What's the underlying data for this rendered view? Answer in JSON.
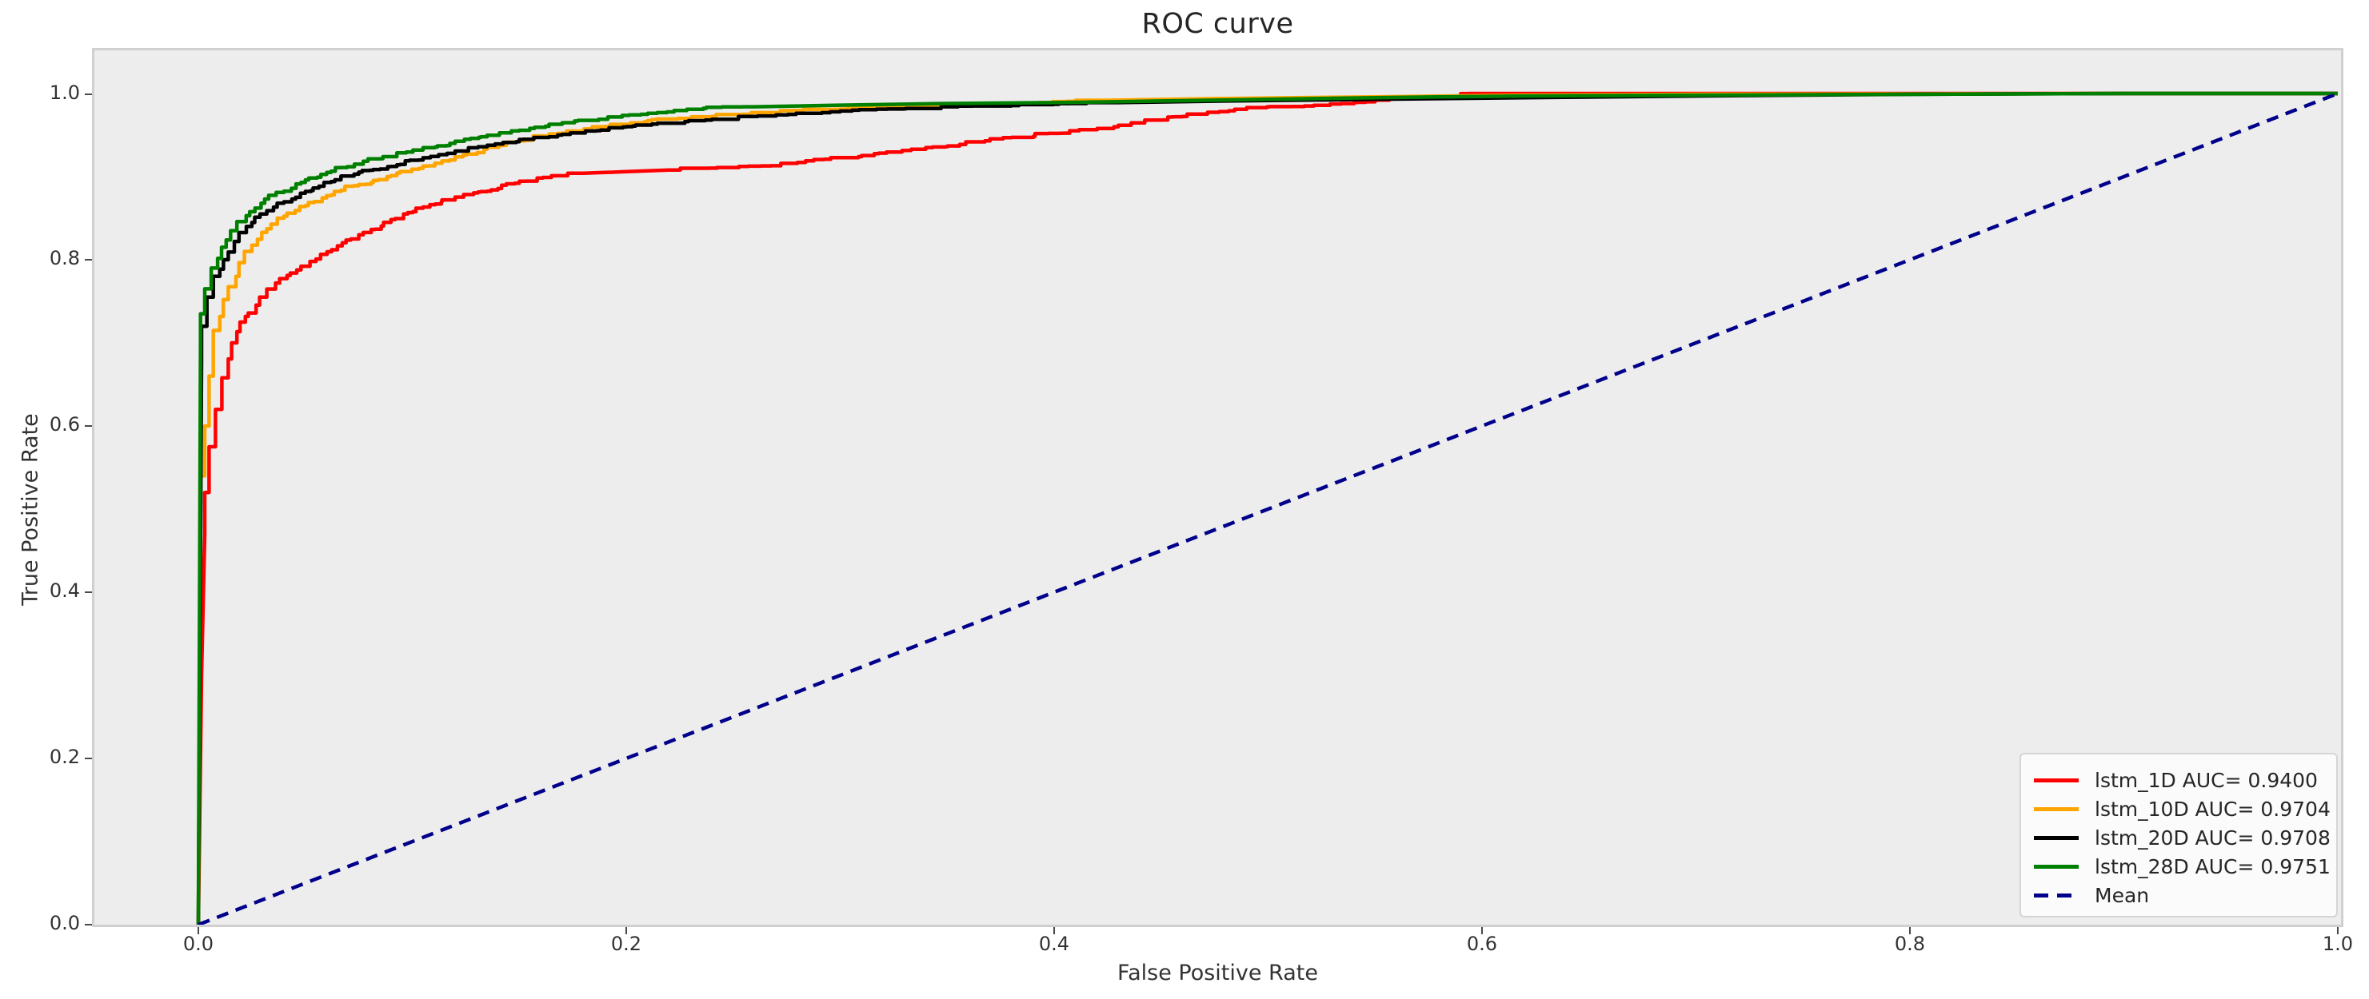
{
  "title": "ROC curve",
  "axes": {
    "xlabel": "False Positive Rate",
    "ylabel": "True Positive Rate",
    "x_ticks": [
      "0.0",
      "0.2",
      "0.4",
      "0.6",
      "0.8",
      "1.0"
    ],
    "y_ticks": [
      "0.0",
      "0.2",
      "0.4",
      "0.6",
      "0.8",
      "1.0"
    ]
  },
  "colors": {
    "plot_background": "#ededed",
    "figure_background": "#ffffff",
    "spine": "#d0d0d0",
    "tick_text": "#333333"
  },
  "legend": {
    "position": "lower right",
    "items": [
      "lstm_1D AUC= 0.9400",
      "lstm_10D AUC= 0.9704",
      "lstm_20D AUC= 0.9708",
      "lstm_28D AUC= 0.9751",
      "Mean"
    ]
  },
  "chart_data": {
    "type": "line",
    "title": "ROC curve",
    "xlabel": "False Positive Rate",
    "ylabel": "True Positive Rate",
    "xlim": [
      -0.049,
      1.002
    ],
    "ylim": [
      0,
      1.052
    ],
    "x_tick_values": [
      0.0,
      0.2,
      0.4,
      0.6,
      0.8,
      1.0
    ],
    "y_tick_values": [
      0.0,
      0.2,
      0.4,
      0.6,
      0.8,
      1.0
    ],
    "grid": false,
    "legend_position": "lower right",
    "series": [
      {
        "name": "lstm_1D AUC= 0.9400",
        "auc": 0.94,
        "color": "#ff0000",
        "style": "solid",
        "stepped": true,
        "points": [
          [
            0,
            0
          ],
          [
            0.0015,
            0.3
          ],
          [
            0.003,
            0.47
          ],
          [
            0.005,
            0.52
          ],
          [
            0.008,
            0.575
          ],
          [
            0.011,
            0.62
          ],
          [
            0.014,
            0.658
          ],
          [
            0.018,
            0.7
          ],
          [
            0.022,
            0.725
          ],
          [
            0.027,
            0.736
          ],
          [
            0.032,
            0.755
          ],
          [
            0.038,
            0.772
          ],
          [
            0.046,
            0.784
          ],
          [
            0.055,
            0.798
          ],
          [
            0.065,
            0.812
          ],
          [
            0.075,
            0.825
          ],
          [
            0.09,
            0.845
          ],
          [
            0.105,
            0.862
          ],
          [
            0.12,
            0.872
          ],
          [
            0.135,
            0.882
          ],
          [
            0.15,
            0.892
          ],
          [
            0.165,
            0.899
          ],
          [
            0.18,
            0.904
          ],
          [
            0.2,
            0.906
          ],
          [
            0.22,
            0.908
          ],
          [
            0.25,
            0.911
          ],
          [
            0.28,
            0.916
          ],
          [
            0.31,
            0.924
          ],
          [
            0.34,
            0.933
          ],
          [
            0.37,
            0.943
          ],
          [
            0.4,
            0.952
          ],
          [
            0.43,
            0.96
          ],
          [
            0.46,
            0.972
          ],
          [
            0.49,
            0.981
          ],
          [
            0.52,
            0.985
          ],
          [
            0.55,
            0.99
          ],
          [
            0.575,
            0.995
          ],
          [
            0.6,
            1.0
          ],
          [
            1.0,
            1.0
          ]
        ]
      },
      {
        "name": "lstm_10D AUC= 0.9704",
        "auc": 0.9704,
        "color": "#ffa500",
        "style": "solid",
        "stepped": true,
        "points": [
          [
            0,
            0
          ],
          [
            0.001,
            0.455
          ],
          [
            0.003,
            0.54
          ],
          [
            0.005,
            0.6
          ],
          [
            0.007,
            0.66
          ],
          [
            0.01,
            0.715
          ],
          [
            0.014,
            0.752
          ],
          [
            0.019,
            0.78
          ],
          [
            0.025,
            0.81
          ],
          [
            0.032,
            0.833
          ],
          [
            0.04,
            0.85
          ],
          [
            0.05,
            0.864
          ],
          [
            0.062,
            0.877
          ],
          [
            0.075,
            0.889
          ],
          [
            0.09,
            0.9
          ],
          [
            0.105,
            0.91
          ],
          [
            0.12,
            0.92
          ],
          [
            0.135,
            0.933
          ],
          [
            0.15,
            0.942
          ],
          [
            0.17,
            0.952
          ],
          [
            0.19,
            0.96
          ],
          [
            0.21,
            0.966
          ],
          [
            0.24,
            0.972
          ],
          [
            0.27,
            0.977
          ],
          [
            0.3,
            0.981
          ],
          [
            0.34,
            0.985
          ],
          [
            0.38,
            0.988
          ],
          [
            0.43,
            0.992
          ],
          [
            0.48,
            0.994
          ],
          [
            0.55,
            0.996
          ],
          [
            0.62,
            0.998
          ],
          [
            0.7,
            0.999
          ],
          [
            0.8,
            0.9995
          ],
          [
            0.9,
            1.0
          ],
          [
            1.0,
            1.0
          ]
        ]
      },
      {
        "name": "lstm_20D AUC= 0.9708",
        "auc": 0.9708,
        "color": "#000000",
        "style": "solid",
        "stepped": true,
        "points": [
          [
            0,
            0
          ],
          [
            0.0015,
            0.68
          ],
          [
            0.004,
            0.72
          ],
          [
            0.007,
            0.755
          ],
          [
            0.01,
            0.78
          ],
          [
            0.014,
            0.8
          ],
          [
            0.019,
            0.822
          ],
          [
            0.025,
            0.84
          ],
          [
            0.032,
            0.855
          ],
          [
            0.04,
            0.868
          ],
          [
            0.05,
            0.88
          ],
          [
            0.062,
            0.893
          ],
          [
            0.075,
            0.903
          ],
          [
            0.09,
            0.912
          ],
          [
            0.105,
            0.92
          ],
          [
            0.12,
            0.928
          ],
          [
            0.135,
            0.936
          ],
          [
            0.15,
            0.942
          ],
          [
            0.17,
            0.95
          ],
          [
            0.19,
            0.956
          ],
          [
            0.21,
            0.962
          ],
          [
            0.24,
            0.968
          ],
          [
            0.27,
            0.973
          ],
          [
            0.3,
            0.978
          ],
          [
            0.34,
            0.982
          ],
          [
            0.38,
            0.985
          ],
          [
            0.43,
            0.989
          ],
          [
            0.48,
            0.991
          ],
          [
            0.55,
            0.993
          ],
          [
            0.62,
            0.995
          ],
          [
            0.7,
            0.997
          ],
          [
            0.8,
            0.999
          ],
          [
            0.9,
            1.0
          ],
          [
            1.0,
            1.0
          ]
        ]
      },
      {
        "name": "lstm_28D AUC= 0.9751",
        "auc": 0.9751,
        "color": "#008000",
        "style": "solid",
        "stepped": true,
        "points": [
          [
            0,
            0
          ],
          [
            0.001,
            0.7
          ],
          [
            0.003,
            0.735
          ],
          [
            0.006,
            0.765
          ],
          [
            0.009,
            0.79
          ],
          [
            0.013,
            0.815
          ],
          [
            0.018,
            0.835
          ],
          [
            0.024,
            0.853
          ],
          [
            0.031,
            0.868
          ],
          [
            0.04,
            0.881
          ],
          [
            0.05,
            0.893
          ],
          [
            0.062,
            0.905
          ],
          [
            0.075,
            0.915
          ],
          [
            0.09,
            0.924
          ],
          [
            0.105,
            0.932
          ],
          [
            0.12,
            0.94
          ],
          [
            0.135,
            0.948
          ],
          [
            0.15,
            0.955
          ],
          [
            0.17,
            0.963
          ],
          [
            0.19,
            0.969
          ],
          [
            0.21,
            0.975
          ],
          [
            0.23,
            0.981
          ],
          [
            0.26,
            0.984
          ],
          [
            0.3,
            0.986
          ],
          [
            0.35,
            0.988
          ],
          [
            0.4,
            0.989
          ],
          [
            0.45,
            0.991
          ],
          [
            0.5,
            0.993
          ],
          [
            0.55,
            0.995
          ],
          [
            0.62,
            0.997
          ],
          [
            0.7,
            0.998
          ],
          [
            0.8,
            0.999
          ],
          [
            0.9,
            1.0
          ],
          [
            1.0,
            1.0
          ]
        ]
      },
      {
        "name": "Mean",
        "color": "#00008b",
        "style": "dashed",
        "stepped": false,
        "points": [
          [
            0,
            0
          ],
          [
            1,
            1
          ]
        ]
      }
    ]
  }
}
